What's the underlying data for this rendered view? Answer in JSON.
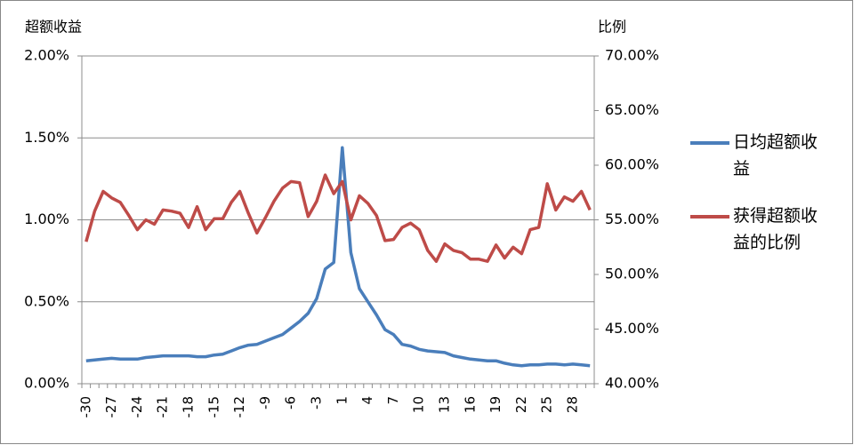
{
  "chart_data": {
    "type": "line",
    "y_title": "超额收益",
    "y2_title": "比例",
    "categories": [
      -30,
      null,
      null,
      -27,
      null,
      null,
      -24,
      null,
      null,
      -21,
      null,
      null,
      -18,
      null,
      null,
      -15,
      null,
      null,
      -12,
      null,
      null,
      -9,
      null,
      null,
      -6,
      null,
      null,
      -3,
      null,
      null,
      1,
      null,
      null,
      4,
      null,
      null,
      7,
      null,
      null,
      10,
      null,
      null,
      13,
      null,
      null,
      16,
      null,
      null,
      19,
      null,
      null,
      22,
      null,
      null,
      25,
      null,
      null,
      28,
      null,
      null
    ],
    "series": [
      {
        "name": "日均超额收益",
        "color": "#4a7ebb",
        "axis": "y",
        "values": [
          0.14,
          0.145,
          0.15,
          0.155,
          0.15,
          0.15,
          0.15,
          0.16,
          0.165,
          0.17,
          0.17,
          0.17,
          0.17,
          0.165,
          0.165,
          0.175,
          0.18,
          0.2,
          0.22,
          0.235,
          0.24,
          0.26,
          0.28,
          0.3,
          0.34,
          0.38,
          0.43,
          0.52,
          0.7,
          0.74,
          1.44,
          0.8,
          0.58,
          0.5,
          0.42,
          0.33,
          0.3,
          0.24,
          0.23,
          0.21,
          0.2,
          0.195,
          0.19,
          0.17,
          0.16,
          0.15,
          0.145,
          0.14,
          0.14,
          0.125,
          0.115,
          0.11,
          0.115,
          0.115,
          0.12,
          0.12,
          0.115,
          0.12,
          0.115,
          0.11
        ]
      },
      {
        "name": "获得超额收益的比例",
        "color": "#be4b48",
        "axis": "y2",
        "values": [
          53.0,
          55.8,
          57.6,
          57.0,
          56.6,
          55.4,
          54.1,
          55.0,
          54.6,
          55.9,
          55.8,
          55.6,
          54.3,
          56.2,
          54.1,
          55.1,
          55.1,
          56.6,
          57.6,
          55.6,
          53.8,
          55.2,
          56.7,
          57.9,
          58.5,
          58.4,
          55.3,
          56.7,
          59.1,
          57.4,
          58.5,
          55.0,
          57.2,
          56.5,
          55.4,
          53.1,
          53.2,
          54.3,
          54.7,
          54.1,
          52.2,
          51.2,
          52.8,
          52.2,
          52.0,
          51.4,
          51.4,
          51.2,
          52.7,
          51.5,
          52.5,
          51.9,
          54.1,
          54.3,
          58.3,
          55.9,
          57.1,
          56.7,
          57.6,
          55.9
        ]
      }
    ],
    "ylim": [
      0,
      2
    ],
    "yticks": [
      {
        "value": 0,
        "label": "0.00%"
      },
      {
        "value": 0.5,
        "label": "0.50%"
      },
      {
        "value": 1,
        "label": "1.00%"
      },
      {
        "value": 1.5,
        "label": "1.50%"
      },
      {
        "value": 2,
        "label": "2.00%"
      }
    ],
    "y2lim": [
      40,
      70
    ],
    "y2ticks": [
      {
        "value": 40,
        "label": "40.00%"
      },
      {
        "value": 45,
        "label": "45.00%"
      },
      {
        "value": 50,
        "label": "50.00%"
      },
      {
        "value": 55,
        "label": "55.00%"
      },
      {
        "value": 60,
        "label": "60.00%"
      },
      {
        "value": 65,
        "label": "65.00%"
      },
      {
        "value": 70,
        "label": "70.00%"
      }
    ],
    "grid": true,
    "legend": "right"
  }
}
